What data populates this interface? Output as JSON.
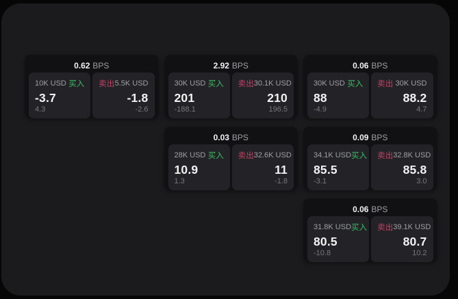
{
  "colors": {
    "background": "#060607",
    "panel": "#1b1b1d",
    "card": "#111113",
    "tile": "#232327",
    "text_primary": "#f2f2f4",
    "text_secondary": "#9fa0a4",
    "text_muted": "#77787c",
    "buy_green": "#3cbe64",
    "sell_red": "#c64064"
  },
  "units": {
    "bps": "BPS"
  },
  "cards": [
    {
      "row": 1,
      "col": 1,
      "bps": "0.62",
      "buy": {
        "amount": "10K USD",
        "label": "买入",
        "price": "-3.7",
        "change": "4.3"
      },
      "sell": {
        "label": "卖出",
        "amount": "5.5K USD",
        "price": "-1.8",
        "change": "-2.6"
      }
    },
    {
      "row": 1,
      "col": 2,
      "bps": "2.92",
      "buy": {
        "amount": "30K USD",
        "label": "买入",
        "price": "201",
        "change": "-188.1"
      },
      "sell": {
        "label": "卖出",
        "amount": "30.1K USD",
        "price": "210",
        "change": "196.5"
      }
    },
    {
      "row": 1,
      "col": 3,
      "bps": "0.06",
      "buy": {
        "amount": "30K USD",
        "label": "买入",
        "price": "88",
        "change": "-4.9"
      },
      "sell": {
        "label": "卖出",
        "amount": "30K USD",
        "price": "88.2",
        "change": "4.7"
      }
    },
    {
      "row": 2,
      "col": 2,
      "bps": "0.03",
      "buy": {
        "amount": "28K USD",
        "label": "买入",
        "price": "10.9",
        "change": "1.3"
      },
      "sell": {
        "label": "卖出",
        "amount": "32.6K USD",
        "price": "11",
        "change": "-1.8"
      }
    },
    {
      "row": 2,
      "col": 3,
      "bps": "0.09",
      "buy": {
        "amount": "34.1K USD",
        "label": "买入",
        "price": "85.5",
        "change": "-3.1"
      },
      "sell": {
        "label": "卖出",
        "amount": "32.8K USD",
        "price": "85.8",
        "change": "3.0"
      }
    },
    {
      "row": 3,
      "col": 3,
      "bps": "0.06",
      "buy": {
        "amount": "31.8K USD",
        "label": "买入",
        "price": "80.5",
        "change": "-10.8"
      },
      "sell": {
        "label": "卖出",
        "amount": "39.1K USD",
        "price": "80.7",
        "change": "10.2"
      }
    }
  ]
}
